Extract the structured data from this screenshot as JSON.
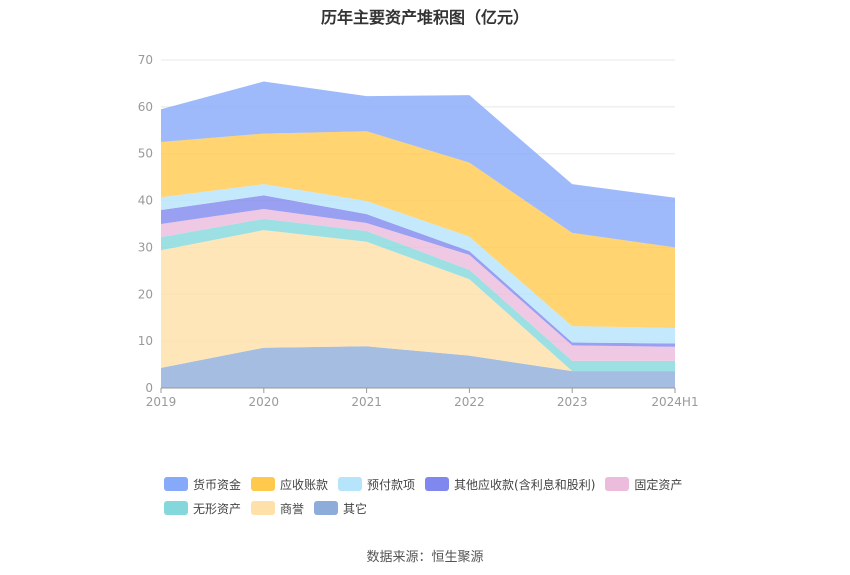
{
  "source_label": "数据来源：恒生聚源",
  "chart_data": {
    "type": "area",
    "stacked": true,
    "title": "历年主要资产堆积图（亿元）",
    "xlabel": "",
    "ylabel": "",
    "x": [
      "2019",
      "2020",
      "2021",
      "2022",
      "2023",
      "2024H1"
    ],
    "ylim": [
      0,
      70
    ],
    "yticks": [
      0,
      10,
      20,
      30,
      40,
      50,
      60,
      70
    ],
    "grid": true,
    "legend_position": "bottom",
    "series": [
      {
        "name": "其它",
        "color": "#8eacd9",
        "values": [
          4.3,
          8.6,
          8.9,
          6.9,
          3.6,
          3.6
        ]
      },
      {
        "name": "商誉",
        "color": "#ffe0a8",
        "values": [
          25.1,
          25.1,
          22.3,
          16.3,
          0.0,
          0.0
        ]
      },
      {
        "name": "无形资产",
        "color": "#84d8dc",
        "values": [
          2.8,
          2.4,
          2.3,
          2.0,
          2.2,
          2.2
        ]
      },
      {
        "name": "固定资产",
        "color": "#ebbcdc",
        "values": [
          2.8,
          2.1,
          1.7,
          3.2,
          3.3,
          3.0
        ]
      },
      {
        "name": "其他应收款(含利息和股利)",
        "color": "#8087ee",
        "values": [
          3.0,
          2.9,
          1.9,
          0.8,
          0.6,
          0.7
        ]
      },
      {
        "name": "预付款项",
        "color": "#b6e4fb",
        "values": [
          2.7,
          2.4,
          2.8,
          3.1,
          3.5,
          3.3
        ]
      },
      {
        "name": "应收账款",
        "color": "#ffc94d",
        "values": [
          11.8,
          10.8,
          14.9,
          15.8,
          19.9,
          17.2
        ]
      },
      {
        "name": "货币资金",
        "color": "#87a9fa",
        "values": [
          7.0,
          11.1,
          7.5,
          14.4,
          10.4,
          10.6
        ]
      }
    ],
    "legend_rows": [
      [
        "货币资金",
        "应收账款",
        "预付款项",
        "其他应收款(含利息和股利)",
        "固定资产"
      ],
      [
        "无形资产",
        "商誉",
        "其它"
      ]
    ]
  }
}
